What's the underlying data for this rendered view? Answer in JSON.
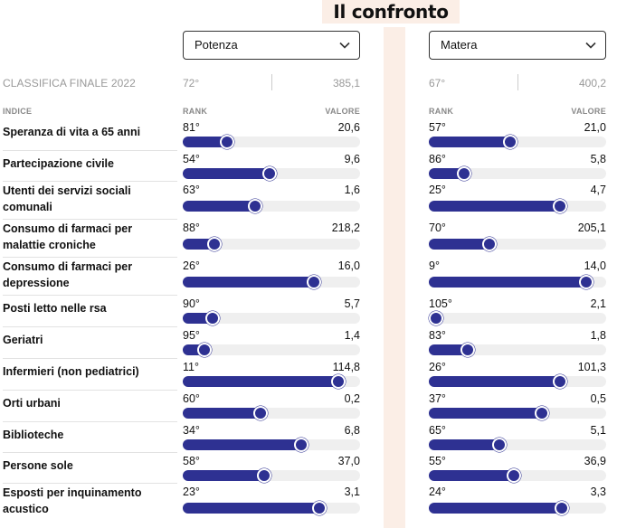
{
  "title": "Il confronto",
  "left": {
    "city": "Potenza",
    "classifica_rank": "72°",
    "classifica_value": "385,1"
  },
  "right": {
    "city": "Matera",
    "classifica_rank": "67°",
    "classifica_value": "400,2"
  },
  "classifica_label": "CLASSIFICA FINALE 2022",
  "headers": {
    "indice": "INDICE",
    "rank": "RANK",
    "valore": "VALORE"
  },
  "bar_color": "#2e3192",
  "indicators": [
    {
      "label": "Speranza di vita a 65 anni",
      "left": {
        "rank": "81°",
        "value": "20,6",
        "fill": 0.25
      },
      "right": {
        "rank": "57°",
        "value": "21,0",
        "fill": 0.46
      }
    },
    {
      "label": "Partecipazione civile",
      "left": {
        "rank": "54°",
        "value": "9,6",
        "fill": 0.49
      },
      "right": {
        "rank": "86°",
        "value": "5,8",
        "fill": 0.2
      }
    },
    {
      "label": "Utenti dei servizi sociali comunali",
      "left": {
        "rank": "63°",
        "value": "1,6",
        "fill": 0.41
      },
      "right": {
        "rank": "25°",
        "value": "4,7",
        "fill": 0.74
      }
    },
    {
      "label": "Consumo di farmaci per malattie croniche",
      "left": {
        "rank": "88°",
        "value": "218,2",
        "fill": 0.18
      },
      "right": {
        "rank": "70°",
        "value": "205,1",
        "fill": 0.34
      }
    },
    {
      "label": "Consumo di farmaci per depressione",
      "left": {
        "rank": "26°",
        "value": "16,0",
        "fill": 0.74
      },
      "right": {
        "rank": "9°",
        "value": "14,0",
        "fill": 0.89
      }
    },
    {
      "label": "Posti letto nelle rsa",
      "left": {
        "rank": "90°",
        "value": "5,7",
        "fill": 0.17
      },
      "right": {
        "rank": "105°",
        "value": "2,1",
        "fill": 0.04
      }
    },
    {
      "label": "Geriatri",
      "left": {
        "rank": "95°",
        "value": "1,4",
        "fill": 0.12
      },
      "right": {
        "rank": "83°",
        "value": "1,8",
        "fill": 0.22
      }
    },
    {
      "label": "Infermieri (non pediatrici)",
      "left": {
        "rank": "11°",
        "value": "114,8",
        "fill": 0.88
      },
      "right": {
        "rank": "26°",
        "value": "101,3",
        "fill": 0.74
      }
    },
    {
      "label": "Orti urbani",
      "left": {
        "rank": "60°",
        "value": "0,2",
        "fill": 0.44
      },
      "right": {
        "rank": "37°",
        "value": "0,5",
        "fill": 0.64
      }
    },
    {
      "label": "Biblioteche",
      "left": {
        "rank": "34°",
        "value": "6,8",
        "fill": 0.67
      },
      "right": {
        "rank": "65°",
        "value": "5,1",
        "fill": 0.4
      }
    },
    {
      "label": "Persone sole",
      "left": {
        "rank": "58°",
        "value": "37,0",
        "fill": 0.46
      },
      "right": {
        "rank": "55°",
        "value": "36,9",
        "fill": 0.48
      }
    },
    {
      "label": "Esposti per inquinamento acustico",
      "left": {
        "rank": "23°",
        "value": "3,1",
        "fill": 0.77
      },
      "right": {
        "rank": "24°",
        "value": "3,3",
        "fill": 0.75
      }
    }
  ]
}
